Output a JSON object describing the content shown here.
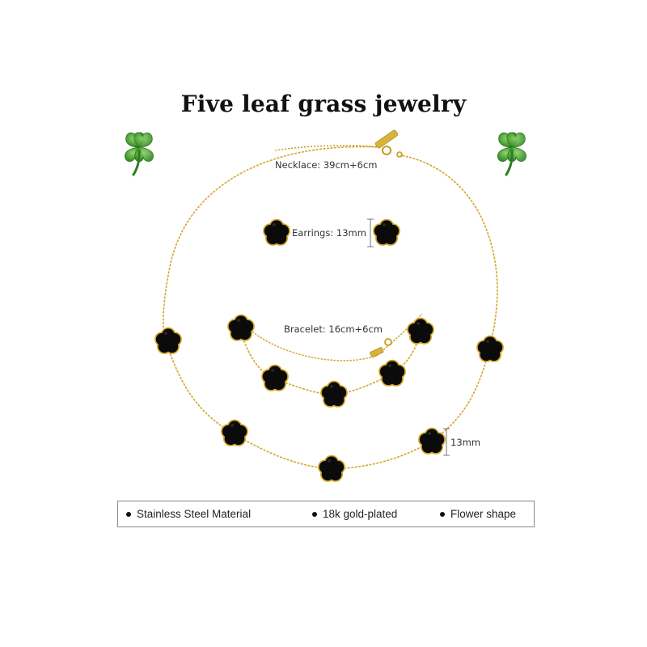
{
  "title": "Five leaf grass jewelry",
  "labels": {
    "necklace": "Necklace: 39cm+6cm",
    "earrings": "Earrings: 13mm",
    "bracelet": "Bracelet: 16cm+6cm",
    "pendant_size": "13mm"
  },
  "features": [
    {
      "text": "Stainless Steel Material"
    },
    {
      "text": "18k gold-plated"
    },
    {
      "text": "Flower shape"
    }
  ],
  "colors": {
    "gold": "#d4a62a",
    "flower_fill": "#0b0b0b",
    "clover_green": "#3f9a2c"
  },
  "icons": [
    "four-leaf-clover-icon",
    "flower-charm-icon"
  ]
}
